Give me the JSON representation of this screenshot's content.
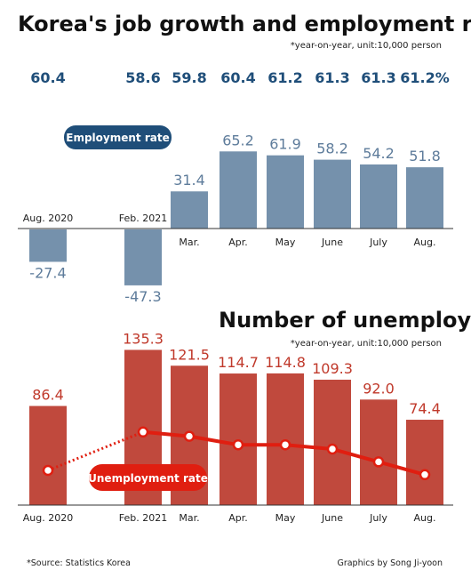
{
  "title": "Korea's job growth and employment rate",
  "note_top": "*year-on-year, unit:10,000 person",
  "employment_badge": "Employment rate",
  "unemp_title": "Number of unemployment",
  "note_bottom": "*year-on-year, unit:10,000 person",
  "unemployment_badge": "Unemployment rate",
  "source": "*Source: Statistics Korea",
  "credit": "Graphics by Song Ji-yoon",
  "colors": {
    "employment_line": "#1f4e79",
    "job_bar": "#7591ac",
    "unemployment_bar": "#c0493d",
    "unemployment_line": "#e01e10"
  },
  "chart_data": [
    {
      "type": "line",
      "title": "Korea's job growth and employment rate",
      "categories": [
        "Aug. 2020",
        "Feb. 2021",
        "Mar.",
        "Apr.",
        "May",
        "June",
        "July",
        "Aug."
      ],
      "series": [
        {
          "name": "Employment rate",
          "values": [
            60.4,
            58.6,
            59.8,
            60.4,
            61.2,
            61.3,
            61.3,
            61.2
          ]
        }
      ],
      "value_labels": [
        "60.4",
        "58.6",
        "59.8",
        "60.4",
        "61.2",
        "61.3",
        "61.3",
        "61.2%"
      ]
    },
    {
      "type": "bar",
      "categories": [
        "Aug. 2020",
        "Feb. 2021",
        "Mar.",
        "Apr.",
        "May",
        "June",
        "July",
        "Aug."
      ],
      "values": [
        -27.4,
        -47.3,
        31.4,
        65.2,
        61.9,
        58.2,
        54.2,
        51.8
      ],
      "value_labels": [
        "-27.4",
        "-47.3",
        "31.4",
        "65.2",
        "61.9",
        "58.2",
        "54.2",
        "51.8"
      ]
    },
    {
      "type": "bar",
      "title": "Number of unemployment",
      "categories": [
        "Aug. 2020",
        "Feb. 2021",
        "Mar.",
        "Apr.",
        "May",
        "June",
        "July",
        "Aug."
      ],
      "values": [
        86.4,
        135.3,
        121.5,
        114.7,
        114.8,
        109.3,
        92.0,
        74.4
      ],
      "value_labels": [
        "86.4",
        "135.3",
        "121.5",
        "114.7",
        "114.8",
        "109.3",
        "92.0",
        "74.4"
      ]
    },
    {
      "type": "line",
      "categories": [
        "Aug. 2020",
        "Feb. 2021",
        "Mar.",
        "Apr.",
        "May",
        "June",
        "July",
        "Aug."
      ],
      "series": [
        {
          "name": "Unemployment rate",
          "values": [
            3.1,
            4.0,
            3.9,
            3.7,
            3.7,
            3.6,
            3.3,
            3.0
          ]
        }
      ]
    }
  ]
}
